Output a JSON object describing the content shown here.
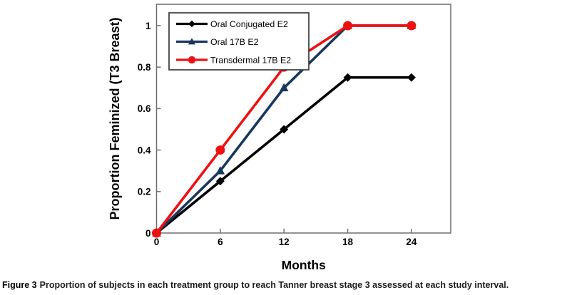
{
  "figure": {
    "caption_label": "Figure 3",
    "caption_text": "Proportion of subjects in each treatment group to reach Tanner breast stage 3 assessed at each study interval."
  },
  "chart_data": {
    "type": "line",
    "title": "",
    "xlabel": "Months",
    "ylabel": "Proportion Feminized (T3 Breast)",
    "x": [
      0,
      6,
      12,
      18,
      24
    ],
    "series": [
      {
        "name": "Oral Conjugated E2",
        "color": "#000000",
        "marker": "diamond",
        "values": [
          0,
          0.25,
          0.5,
          0.75,
          0.75
        ]
      },
      {
        "name": "Oral 17B E2",
        "color": "#17375D",
        "marker": "triangle",
        "values": [
          0,
          0.3,
          0.7,
          1.0,
          1.0
        ]
      },
      {
        "name": "Transdermal 17B E2",
        "color": "#EE1111",
        "marker": "circle",
        "values": [
          0,
          0.4,
          0.8,
          1.0,
          1.0
        ]
      }
    ],
    "x_tick_labels": [
      "0",
      "6",
      "12",
      "18",
      "24"
    ],
    "y_tick_labels": [
      "0",
      "0.2",
      "0.4",
      "0.6",
      "0.8",
      "1"
    ],
    "xlim": [
      0,
      27.7
    ],
    "ylim": [
      0,
      1.103
    ],
    "grid": false,
    "legend_position": "top-left",
    "axis_color": "#6e6e6e",
    "legend_border_color": "#3a3a3a"
  }
}
